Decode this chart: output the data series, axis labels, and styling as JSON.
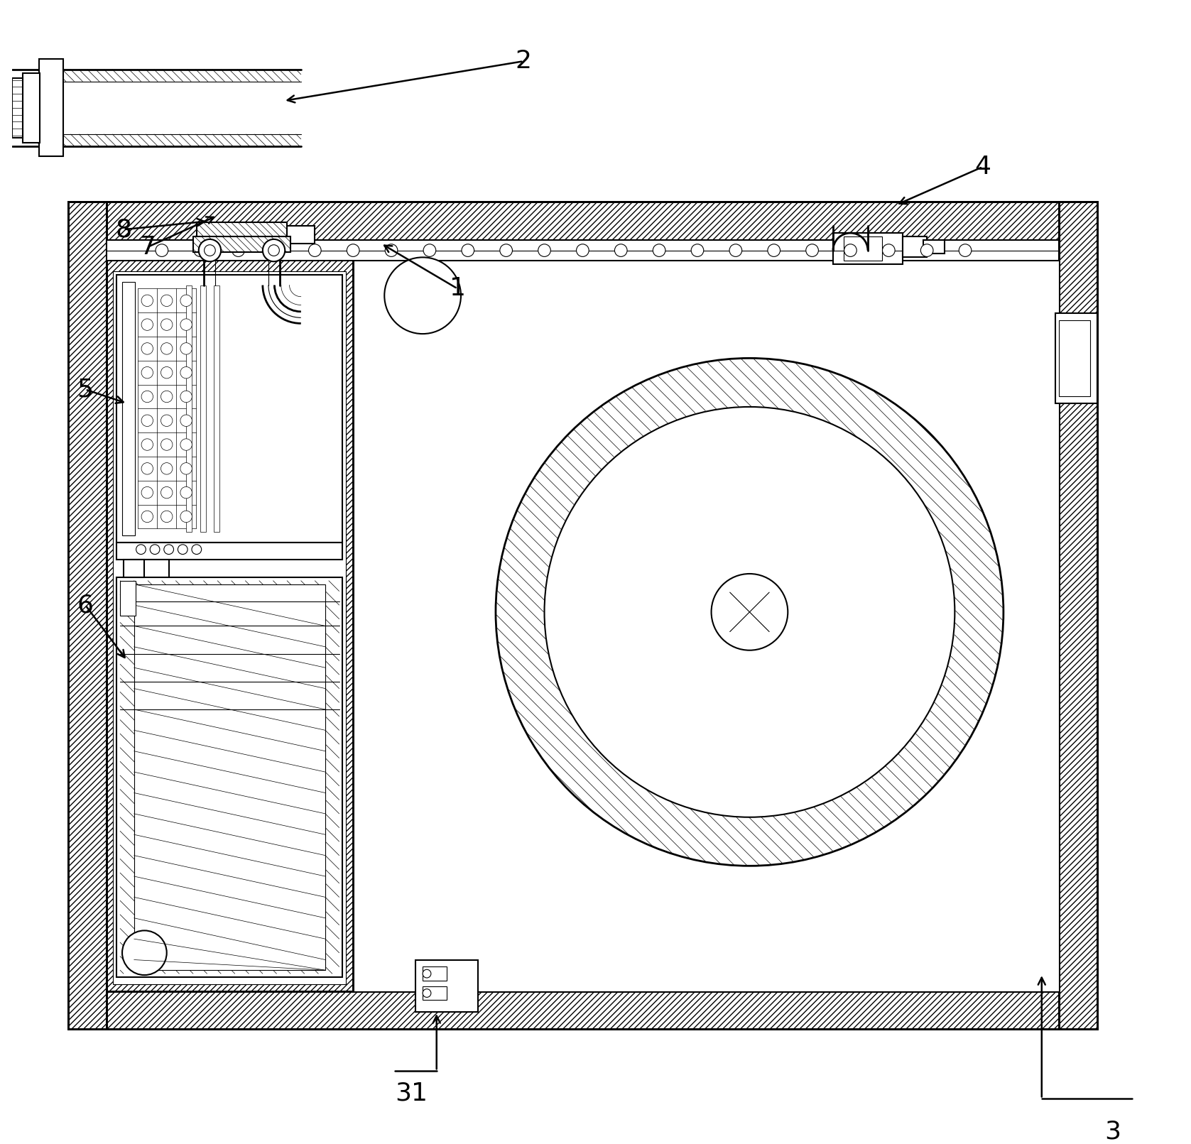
{
  "bg_color": "#ffffff",
  "line_color": "#000000",
  "fig_width": 16.77,
  "fig_height": 16.11,
  "dpi": 100
}
